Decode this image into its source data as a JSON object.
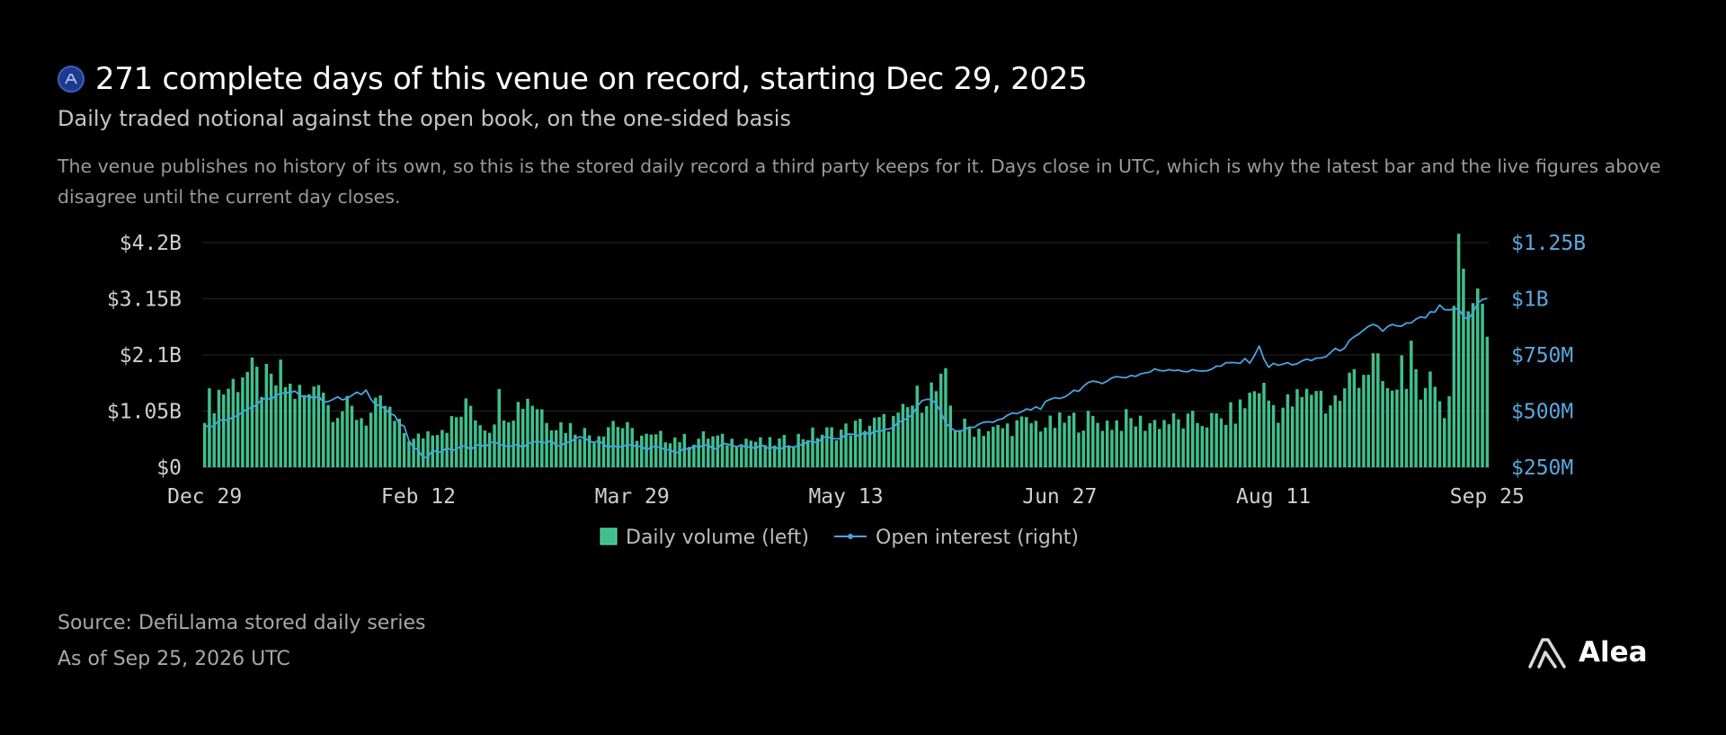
{
  "header": {
    "title": "271 complete days of this venue on record, starting Dec 29, 2025",
    "subtitle": "Daily traded notional against the open book, on the one-sided basis",
    "description": "The venue publishes no history of its own, so this is the stored daily record a third party keeps for it. Days close in UTC, which is why the latest bar and the live figures above disagree until the current day closes."
  },
  "footer": {
    "source": "Source: DefiLlama stored daily series",
    "as_of": "As of Sep 25, 2026 UTC"
  },
  "brand": {
    "name": "Alea",
    "icon": "alea-logo-icon"
  },
  "venue_icon": "venue-logo-icon",
  "colors": {
    "bar": "#3fbf8e",
    "line": "#4aa3df",
    "right_axis": "#5aa8e0",
    "grid": "#232323"
  },
  "chart_data": {
    "type": "bar",
    "days": 271,
    "x_tick_labels": [
      "Dec 29",
      "Feb 12",
      "Mar 29",
      "May 13",
      "Jun 27",
      "Aug 11",
      "Sep 25"
    ],
    "y_left": {
      "ticks": [
        0,
        1.05,
        2.1,
        3.15,
        4.2
      ],
      "labels": [
        "$0",
        "$1.05B",
        "$2.1B",
        "$3.15B",
        "$4.2B"
      ],
      "unit": "USD billions",
      "range": [
        0,
        4.2
      ]
    },
    "y_right": {
      "ticks": [
        250,
        500,
        750,
        1000,
        1250
      ],
      "labels": [
        "$250M",
        "$500M",
        "$750M",
        "$1B",
        "$1.25B"
      ],
      "unit": "USD millions",
      "range": [
        250,
        1250
      ]
    },
    "legend": [
      "Daily volume (left)",
      "Open interest (right)"
    ],
    "grid": true,
    "series": [
      {
        "name": "Daily volume (left)",
        "type": "bar",
        "axis": "left",
        "anchors": [
          [
            0,
            1.15
          ],
          [
            3,
            1.45
          ],
          [
            6,
            1.6
          ],
          [
            8,
            1.9
          ],
          [
            10,
            1.7
          ],
          [
            14,
            1.55
          ],
          [
            16,
            1.7
          ],
          [
            18,
            1.5
          ],
          [
            22,
            1.3
          ],
          [
            24,
            1.95
          ],
          [
            26,
            1.2
          ],
          [
            30,
            1.1
          ],
          [
            34,
            0.95
          ],
          [
            38,
            1.2
          ],
          [
            40,
            0.85
          ],
          [
            44,
            0.5
          ],
          [
            48,
            0.75
          ],
          [
            52,
            0.85
          ],
          [
            56,
            1.2
          ],
          [
            58,
            0.9
          ],
          [
            60,
            0.8
          ],
          [
            62,
            1.3
          ],
          [
            64,
            1.1
          ],
          [
            66,
            1.2
          ],
          [
            68,
            1.4
          ],
          [
            70,
            1.2
          ],
          [
            74,
            0.85
          ],
          [
            78,
            0.75
          ],
          [
            82,
            0.6
          ],
          [
            86,
            0.9
          ],
          [
            90,
            0.65
          ],
          [
            94,
            0.55
          ],
          [
            98,
            0.6
          ],
          [
            102,
            0.5
          ],
          [
            106,
            0.6
          ],
          [
            110,
            0.5
          ],
          [
            114,
            0.55
          ],
          [
            118,
            0.45
          ],
          [
            122,
            0.5
          ],
          [
            126,
            0.6
          ],
          [
            130,
            0.65
          ],
          [
            134,
            0.7
          ],
          [
            138,
            0.8
          ],
          [
            142,
            0.85
          ],
          [
            146,
            0.9
          ],
          [
            150,
            1.3
          ],
          [
            152,
            1.5
          ],
          [
            154,
            1.45
          ],
          [
            156,
            1.55
          ],
          [
            158,
            0.8
          ],
          [
            162,
            0.75
          ],
          [
            166,
            0.7
          ],
          [
            170,
            0.8
          ],
          [
            174,
            0.85
          ],
          [
            178,
            0.8
          ],
          [
            182,
            0.9
          ],
          [
            186,
            0.9
          ],
          [
            190,
            0.85
          ],
          [
            194,
            0.9
          ],
          [
            198,
            0.85
          ],
          [
            202,
            0.9
          ],
          [
            206,
            0.85
          ],
          [
            210,
            0.9
          ],
          [
            214,
            0.9
          ],
          [
            218,
            1.1
          ],
          [
            222,
            1.6
          ],
          [
            224,
            1.3
          ],
          [
            226,
            1.1
          ],
          [
            228,
            1.2
          ],
          [
            232,
            1.35
          ],
          [
            234,
            1.6
          ],
          [
            236,
            1.2
          ],
          [
            238,
            1.3
          ],
          [
            240,
            1.4
          ],
          [
            242,
            1.9
          ],
          [
            246,
            1.95
          ],
          [
            250,
            1.3
          ],
          [
            252,
            2.0
          ],
          [
            254,
            1.95
          ],
          [
            256,
            1.1
          ],
          [
            258,
            2.2
          ],
          [
            260,
            1.2
          ],
          [
            262,
            1.3
          ],
          [
            264,
            3.7
          ],
          [
            266,
            4.0
          ],
          [
            268,
            3.25
          ],
          [
            270,
            2.65
          ]
        ]
      },
      {
        "name": "Open interest (right)",
        "type": "line",
        "axis": "right",
        "anchors": [
          [
            0,
            430
          ],
          [
            5,
            470
          ],
          [
            10,
            520
          ],
          [
            15,
            570
          ],
          [
            20,
            580
          ],
          [
            25,
            550
          ],
          [
            30,
            555
          ],
          [
            34,
            590
          ],
          [
            36,
            540
          ],
          [
            38,
            510
          ],
          [
            40,
            470
          ],
          [
            42,
            420
          ],
          [
            44,
            330
          ],
          [
            46,
            300
          ],
          [
            48,
            320
          ],
          [
            52,
            330
          ],
          [
            56,
            340
          ],
          [
            60,
            350
          ],
          [
            62,
            360
          ],
          [
            64,
            335
          ],
          [
            68,
            350
          ],
          [
            72,
            360
          ],
          [
            76,
            355
          ],
          [
            80,
            380
          ],
          [
            84,
            350
          ],
          [
            88,
            345
          ],
          [
            92,
            340
          ],
          [
            96,
            330
          ],
          [
            100,
            320
          ],
          [
            104,
            340
          ],
          [
            108,
            345
          ],
          [
            112,
            350
          ],
          [
            116,
            340
          ],
          [
            120,
            335
          ],
          [
            124,
            345
          ],
          [
            128,
            360
          ],
          [
            132,
            380
          ],
          [
            136,
            390
          ],
          [
            140,
            400
          ],
          [
            144,
            420
          ],
          [
            148,
            470
          ],
          [
            150,
            520
          ],
          [
            152,
            555
          ],
          [
            154,
            530
          ],
          [
            156,
            450
          ],
          [
            158,
            410
          ],
          [
            162,
            430
          ],
          [
            166,
            460
          ],
          [
            170,
            480
          ],
          [
            174,
            510
          ],
          [
            176,
            520
          ],
          [
            178,
            540
          ],
          [
            180,
            560
          ],
          [
            184,
            600
          ],
          [
            188,
            630
          ],
          [
            192,
            650
          ],
          [
            196,
            660
          ],
          [
            200,
            680
          ],
          [
            204,
            690
          ],
          [
            208,
            675
          ],
          [
            212,
            690
          ],
          [
            216,
            710
          ],
          [
            220,
            725
          ],
          [
            222,
            780
          ],
          [
            224,
            700
          ],
          [
            228,
            710
          ],
          [
            232,
            720
          ],
          [
            236,
            745
          ],
          [
            240,
            790
          ],
          [
            244,
            850
          ],
          [
            246,
            890
          ],
          [
            248,
            860
          ],
          [
            250,
            880
          ],
          [
            252,
            870
          ],
          [
            254,
            895
          ],
          [
            256,
            910
          ],
          [
            258,
            930
          ],
          [
            260,
            960
          ],
          [
            262,
            940
          ],
          [
            264,
            950
          ],
          [
            266,
            900
          ],
          [
            268,
            980
          ],
          [
            270,
            1010
          ]
        ]
      }
    ]
  }
}
